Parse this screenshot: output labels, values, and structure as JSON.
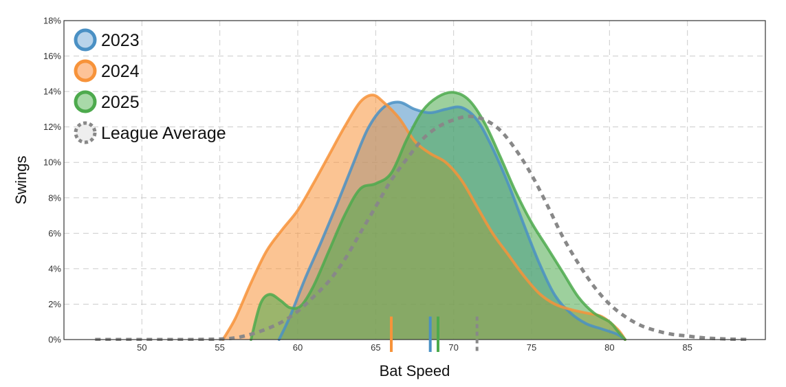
{
  "chart_data": {
    "type": "area",
    "title": "",
    "xlabel": "Bat Speed",
    "ylabel": "Swings",
    "xlim": [
      45,
      90
    ],
    "ylim": [
      0,
      18
    ],
    "x_ticks": [
      50,
      55,
      60,
      65,
      70,
      75,
      80,
      85
    ],
    "y_ticks": [
      0,
      2,
      4,
      6,
      8,
      10,
      12,
      14,
      16,
      18
    ],
    "y_tick_labels": [
      "0%",
      "2%",
      "4%",
      "6%",
      "8%",
      "10%",
      "12%",
      "14%",
      "16%",
      "18%"
    ],
    "grid": true,
    "legend_position": "top-left",
    "legend": [
      "2023",
      "2024",
      "2025",
      "League Average"
    ],
    "series": [
      {
        "name": "2023",
        "color": "#4a90c4",
        "fill": "#b8d3ea",
        "filled": true,
        "dashed": false,
        "mean": 68.5,
        "points": [
          [
            58.8,
            0
          ],
          [
            59.5,
            1.3
          ],
          [
            60.5,
            3.5
          ],
          [
            61.5,
            5.5
          ],
          [
            62.5,
            7.6
          ],
          [
            63.5,
            9.8
          ],
          [
            64.5,
            11.9
          ],
          [
            65.5,
            13.1
          ],
          [
            66.5,
            13.4
          ],
          [
            67.5,
            13.0
          ],
          [
            68.5,
            12.8
          ],
          [
            69.5,
            13.0
          ],
          [
            70.5,
            13.1
          ],
          [
            71.5,
            12.4
          ],
          [
            72.5,
            10.8
          ],
          [
            73.5,
            8.8
          ],
          [
            74.5,
            6.5
          ],
          [
            75.5,
            4.3
          ],
          [
            76.5,
            2.5
          ],
          [
            77.5,
            1.5
          ],
          [
            78.5,
            0.9
          ],
          [
            79.5,
            0.6
          ],
          [
            80.5,
            0.3
          ],
          [
            81,
            0
          ]
        ]
      },
      {
        "name": "2024",
        "color": "#f7933a",
        "fill": "#fdc398",
        "filled": true,
        "dashed": false,
        "mean": 66.0,
        "points": [
          [
            55.2,
            0
          ],
          [
            56,
            1.2
          ],
          [
            57,
            3.2
          ],
          [
            58,
            5.0
          ],
          [
            59,
            6.2
          ],
          [
            60,
            7.3
          ],
          [
            61,
            8.8
          ],
          [
            62,
            10.4
          ],
          [
            63,
            12.0
          ],
          [
            64,
            13.4
          ],
          [
            64.8,
            13.8
          ],
          [
            65.5,
            13.4
          ],
          [
            66.5,
            12.5
          ],
          [
            67.5,
            11.2
          ],
          [
            68.5,
            10.5
          ],
          [
            69.5,
            10.0
          ],
          [
            70.5,
            9.0
          ],
          [
            71.5,
            7.5
          ],
          [
            72.5,
            6.0
          ],
          [
            73.5,
            4.8
          ],
          [
            74.5,
            3.6
          ],
          [
            75.5,
            2.6
          ],
          [
            76.5,
            2.0
          ],
          [
            77.5,
            1.7
          ],
          [
            78.5,
            1.5
          ],
          [
            79.5,
            1.3
          ],
          [
            80.5,
            0.6
          ],
          [
            81,
            0
          ]
        ]
      },
      {
        "name": "2025",
        "color": "#4daa4d",
        "fill": "#a9d9a9",
        "filled": true,
        "dashed": false,
        "mean": 69.0,
        "points": [
          [
            57.0,
            0
          ],
          [
            57.6,
            2.0
          ],
          [
            58.2,
            2.55
          ],
          [
            58.9,
            2.2
          ],
          [
            59.5,
            1.8
          ],
          [
            60.2,
            1.9
          ],
          [
            61,
            3.0
          ],
          [
            62,
            5.0
          ],
          [
            63,
            7.0
          ],
          [
            64,
            8.5
          ],
          [
            65,
            8.8
          ],
          [
            66,
            9.4
          ],
          [
            67,
            11.3
          ],
          [
            68,
            12.9
          ],
          [
            69,
            13.7
          ],
          [
            70,
            13.95
          ],
          [
            71,
            13.5
          ],
          [
            72,
            12.2
          ],
          [
            73,
            10.3
          ],
          [
            74,
            8.3
          ],
          [
            75,
            6.6
          ],
          [
            76,
            5.2
          ],
          [
            77,
            3.8
          ],
          [
            78,
            2.4
          ],
          [
            79,
            1.5
          ],
          [
            80,
            1.0
          ],
          [
            80.5,
            0.5
          ],
          [
            81,
            0
          ]
        ]
      },
      {
        "name": "League Average",
        "color": "#888888",
        "fill": "none",
        "filled": false,
        "dashed": true,
        "mean": 71.5,
        "points": [
          [
            47,
            0
          ],
          [
            50,
            0
          ],
          [
            53,
            0
          ],
          [
            55,
            0.03
          ],
          [
            56,
            0.1
          ],
          [
            57,
            0.3
          ],
          [
            58,
            0.6
          ],
          [
            59,
            1.0
          ],
          [
            60,
            1.6
          ],
          [
            61,
            2.4
          ],
          [
            62,
            3.3
          ],
          [
            63,
            4.5
          ],
          [
            64,
            6.0
          ],
          [
            65,
            7.5
          ],
          [
            66,
            9.0
          ],
          [
            67,
            10.2
          ],
          [
            68,
            11.3
          ],
          [
            69,
            12.0
          ],
          [
            70,
            12.4
          ],
          [
            71,
            12.6
          ],
          [
            72,
            12.4
          ],
          [
            73,
            11.8
          ],
          [
            74,
            10.7
          ],
          [
            75,
            9.3
          ],
          [
            76,
            7.6
          ],
          [
            77,
            5.8
          ],
          [
            78,
            4.3
          ],
          [
            79,
            3.0
          ],
          [
            80,
            2.0
          ],
          [
            81,
            1.3
          ],
          [
            82,
            0.8
          ],
          [
            83,
            0.5
          ],
          [
            84,
            0.3
          ],
          [
            85,
            0.2
          ],
          [
            86,
            0.1
          ],
          [
            87,
            0.05
          ],
          [
            88,
            0.02
          ],
          [
            89,
            0
          ]
        ]
      }
    ]
  }
}
